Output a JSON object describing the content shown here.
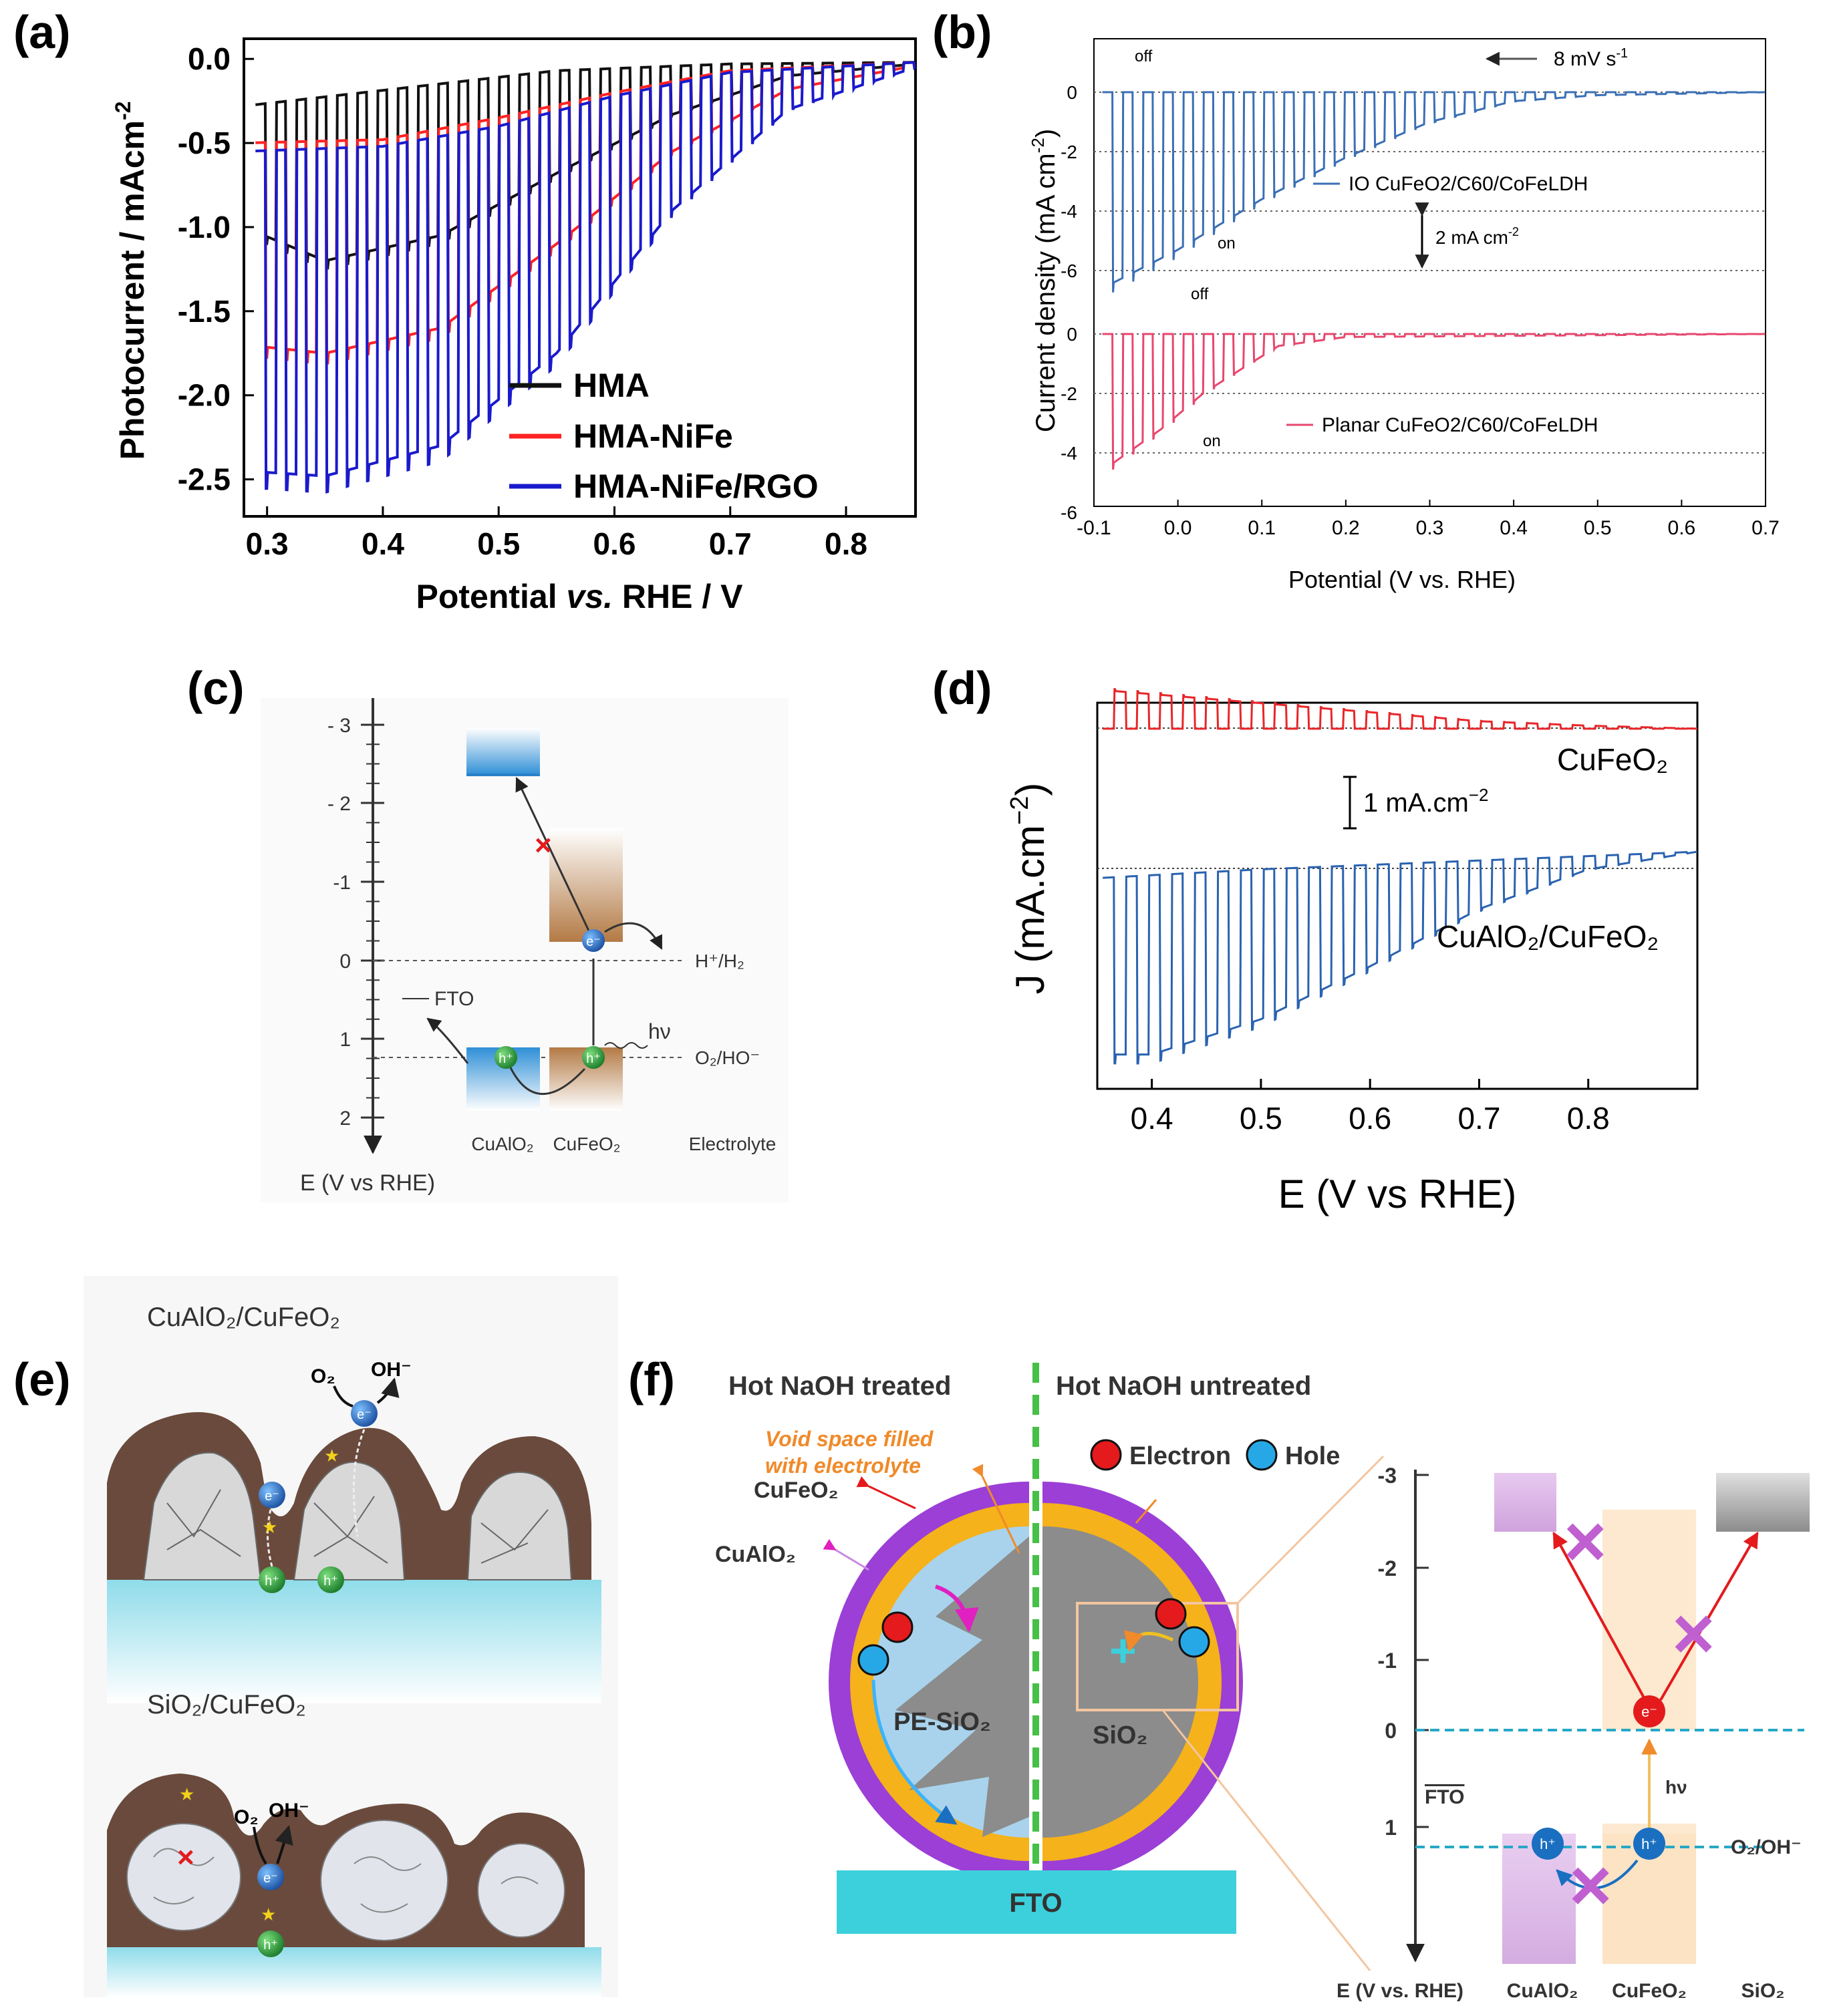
{
  "panel_labels": {
    "a": "(a)",
    "b": "(b)",
    "c": "(c)",
    "d": "(d)",
    "e": "(e)",
    "f": "(f)"
  },
  "colors": {
    "black": "#111111",
    "red": "#ff2222",
    "blue": "#1a1acc",
    "io_blue": "#3a6fb5",
    "planar_pink": "#e8476e",
    "d_red": "#e8262a",
    "d_blue": "#2a62b0",
    "purple": "#9b3fd6",
    "orange": "#f5b21a",
    "cyan": "#3cd0dc",
    "green": "#3cb33c"
  },
  "chart_data": [
    {
      "panel": "a",
      "type": "line",
      "xlabel_parts": [
        "Potential ",
        "vs.",
        " RHE / V"
      ],
      "ylabel": "Photocurrent / mAcm",
      "ylabel_sup": "-2",
      "xlim": [
        0.28,
        0.86
      ],
      "ylim": [
        -2.72,
        0.12
      ],
      "xticks": [
        "0.3",
        "0.4",
        "0.5",
        "0.6",
        "0.7",
        "0.8"
      ],
      "yticks": [
        "0.0",
        "-0.5",
        "-1.0",
        "-1.5",
        "-2.0",
        "-2.5"
      ],
      "legend": [
        "HMA",
        "HMA-NiFe",
        "HMA-NiFe/RGO"
      ],
      "series": [
        {
          "name": "HMA",
          "dark": [
            [
              0.28,
              -0.28
            ],
            [
              0.55,
              -0.07
            ],
            [
              0.7,
              -0.03
            ],
            [
              0.86,
              -0.02
            ]
          ],
          "light": [
            [
              0.28,
              -1.0
            ],
            [
              0.35,
              -1.2
            ],
            [
              0.45,
              -1.05
            ],
            [
              0.55,
              -0.68
            ],
            [
              0.65,
              -0.33
            ],
            [
              0.75,
              -0.1
            ],
            [
              0.86,
              -0.03
            ]
          ]
        },
        {
          "name": "HMA-NiFe",
          "dark": [
            [
              0.28,
              -0.5
            ],
            [
              0.4,
              -0.48
            ],
            [
              0.5,
              -0.35
            ],
            [
              0.6,
              -0.2
            ],
            [
              0.7,
              -0.07
            ],
            [
              0.86,
              -0.02
            ]
          ],
          "light": [
            [
              0.28,
              -1.7
            ],
            [
              0.35,
              -1.75
            ],
            [
              0.45,
              -1.6
            ],
            [
              0.55,
              -1.1
            ],
            [
              0.65,
              -0.55
            ],
            [
              0.75,
              -0.18
            ],
            [
              0.86,
              -0.04
            ]
          ]
        },
        {
          "name": "HMA-NiFe/RGO",
          "dark": [
            [
              0.28,
              -0.55
            ],
            [
              0.4,
              -0.52
            ],
            [
              0.5,
              -0.4
            ],
            [
              0.6,
              -0.22
            ],
            [
              0.7,
              -0.08
            ],
            [
              0.86,
              -0.02
            ]
          ],
          "light": [
            [
              0.28,
              -2.45
            ],
            [
              0.35,
              -2.48
            ],
            [
              0.45,
              -2.3
            ],
            [
              0.55,
              -1.75
            ],
            [
              0.65,
              -0.9
            ],
            [
              0.75,
              -0.3
            ],
            [
              0.86,
              -0.05
            ]
          ]
        }
      ],
      "chop_start": 0.29,
      "chop_end": 0.8,
      "chop_period": 0.0175
    },
    {
      "panel": "b",
      "type": "line",
      "xlabel": "Potential (V vs. RHE)",
      "ylabel": "Current density (mA cm",
      "ylabel_sup": "-2",
      "ylabel_tail": ")",
      "xlim": [
        -0.1,
        0.7
      ],
      "yticks_upper": [
        "0",
        "-2",
        "-4",
        "-6"
      ],
      "yticks_lower": [
        "0",
        "-2",
        "-4",
        "-6"
      ],
      "xticks": [
        "-0.1",
        "0.0",
        "0.1",
        "0.2",
        "0.3",
        "0.4",
        "0.5",
        "0.6",
        "0.7"
      ],
      "annotations": {
        "scan_rate": "8 mV s",
        "scan_rate_sup": "-1",
        "scale": "2 mA cm",
        "scale_sup": "-2",
        "off": "off",
        "on": "on"
      },
      "legend": [
        "IO CuFeO2/C60/CoFeLDH",
        "Planar CuFeO2/C60/CoFeLDH"
      ],
      "series": [
        {
          "name": "IO CuFeO2/C60/CoFeLDH",
          "light": [
            [
              -0.09,
              -6.6
            ],
            [
              0.0,
              -5.3
            ],
            [
              0.1,
              -3.6
            ],
            [
              0.2,
              -2.2
            ],
            [
              0.3,
              -1.0
            ],
            [
              0.4,
              -0.3
            ],
            [
              0.5,
              -0.1
            ],
            [
              0.7,
              0
            ]
          ]
        },
        {
          "name": "Planar CuFeO2/C60/CoFeLDH",
          "light": [
            [
              -0.09,
              -4.6
            ],
            [
              -0.02,
              -3.2
            ],
            [
              0.03,
              -2.0
            ],
            [
              0.08,
              -1.1
            ],
            [
              0.12,
              -0.4
            ],
            [
              0.2,
              -0.1
            ],
            [
              0.7,
              0
            ]
          ]
        }
      ]
    },
    {
      "panel": "c",
      "type": "diagram",
      "yticks": [
        "- 3",
        "- 2",
        "-1",
        "0",
        "1",
        "2"
      ],
      "axis_label": "E (V vs RHE)",
      "labels": {
        "fto": "FTO",
        "h2": "H⁺/H₂",
        "o2": "O₂/HO⁻",
        "hv": "hν",
        "e": "e⁻",
        "h": "h⁺",
        "cualo2": "CuAlO₂",
        "cufeo2": "CuFeO₂",
        "electrolyte": "Electrolyte",
        "cross": "×"
      }
    },
    {
      "panel": "d",
      "type": "line",
      "xlabel": "E (V vs RHE)",
      "ylabel": "J (mA.cm",
      "ylabel_sup": "−2",
      "ylabel_tail": ")",
      "xlim": [
        0.35,
        0.9
      ],
      "xticks": [
        "0.4",
        "0.5",
        "0.6",
        "0.7",
        "0.8"
      ],
      "scale_label": "1 mA.cm",
      "scale_sup": "−2",
      "series_labels": [
        "CuFeO₂",
        "CuAlO₂/CuFeO₂"
      ],
      "series": [
        {
          "name": "CuFeO2",
          "light": [
            [
              0.35,
              -1.3
            ],
            [
              0.4,
              -1.15
            ],
            [
              0.5,
              -0.85
            ],
            [
              0.6,
              -0.55
            ],
            [
              0.7,
              -0.25
            ],
            [
              0.8,
              -0.1
            ],
            [
              0.9,
              0
            ]
          ]
        },
        {
          "name": "CuAlO2/CuFeO2",
          "light": [
            [
              0.35,
              -4.6
            ],
            [
              0.4,
              -4.6
            ],
            [
              0.5,
              -3.8
            ],
            [
              0.6,
              -2.6
            ],
            [
              0.7,
              -1.3
            ],
            [
              0.8,
              -0.4
            ],
            [
              0.9,
              0
            ]
          ]
        }
      ]
    }
  ],
  "panel_e": {
    "top_title": "CuAlO₂/CuFeO₂",
    "bottom_title": "SiO₂/CuFeO₂",
    "o2": "O₂",
    "oh": "OH⁻",
    "e": "e⁻",
    "h": "h⁺"
  },
  "panel_f": {
    "left_header": "Hot NaOH treated",
    "right_header": "Hot NaOH untreated",
    "void_note_line1": "Void space filled",
    "void_note_line2": "with electrolyte",
    "cufeo2": "CuFeO₂",
    "cualo2": "CuAlO₂",
    "pe_sio2": "PE-SiO₂",
    "sio2": "SiO₂",
    "fto": "FTO",
    "legend_electron": "Electron",
    "legend_hole": "Hole",
    "energy": {
      "yticks": [
        "-3",
        "-2",
        "-1",
        "0",
        "1"
      ],
      "fto": "FTO",
      "hv": "hν",
      "e": "e⁻",
      "h": "h⁺",
      "o2": "O₂/OH⁻",
      "axis": "E (V vs. RHE)",
      "axis_vs": "vs.",
      "materials": [
        "CuAlO₂",
        "CuFeO₂",
        "SiO₂"
      ]
    }
  }
}
